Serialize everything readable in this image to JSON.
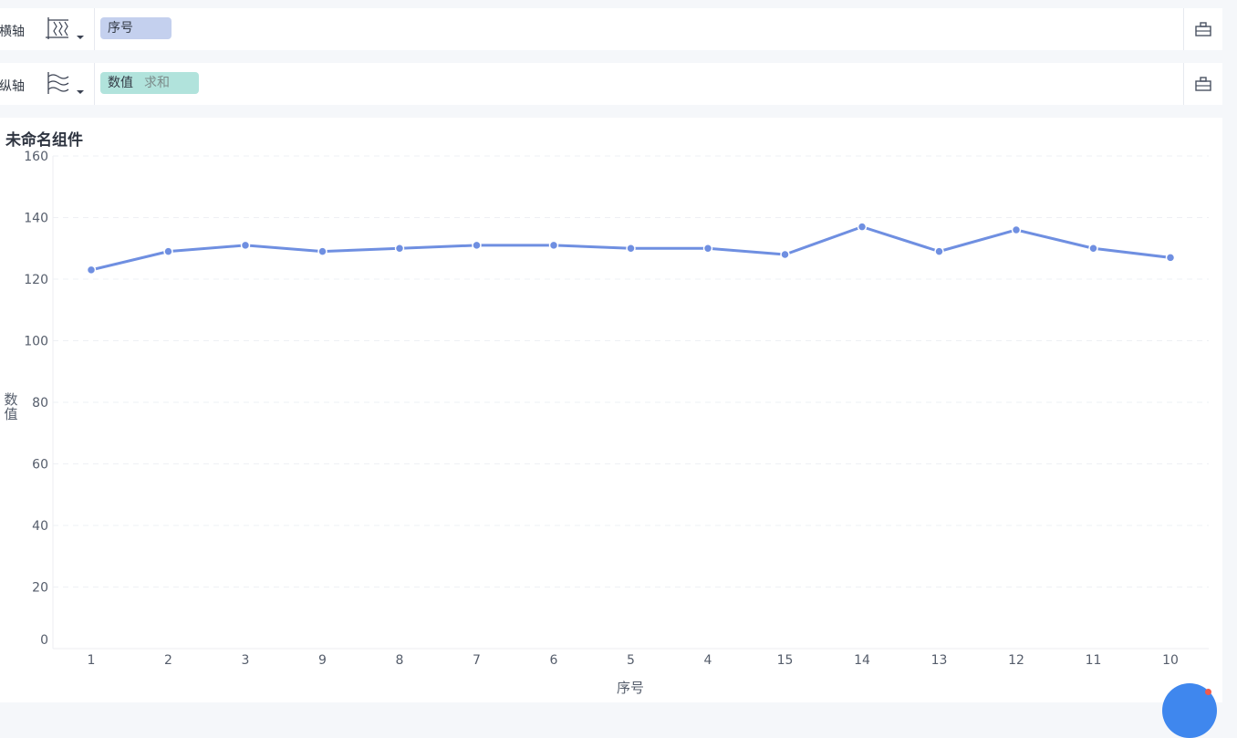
{
  "x_axis_bar": {
    "label": "横轴",
    "icon": "x-axis-type-icon",
    "field": "序号",
    "field_color": "#c4d0ee",
    "settings_icon": "settings-panel-icon"
  },
  "y_axis_bar": {
    "label": "纵轴",
    "icon": "y-axis-type-icon",
    "field": "数值",
    "aggregation": "求和",
    "field_color": "#b1e3dc",
    "settings_icon": "settings-panel-icon"
  },
  "chart_panel": {
    "title": "未命名组件"
  },
  "help_button": {
    "icon": "help-icon",
    "color": "#3f87ee",
    "notification_color": "#f25a4a"
  },
  "chart_data": {
    "type": "line",
    "categories": [
      "1",
      "2",
      "3",
      "9",
      "8",
      "7",
      "6",
      "5",
      "4",
      "15",
      "14",
      "13",
      "12",
      "11",
      "10"
    ],
    "series": [
      {
        "values": [
          123,
          129,
          131,
          129,
          130,
          131,
          131,
          130,
          130,
          128,
          137,
          129,
          136,
          130,
          127
        ],
        "color": "#6f8fe1"
      }
    ],
    "xlabel": "序号",
    "ylabel": "数值",
    "ylim": [
      0,
      160
    ],
    "yticks": [
      0,
      20,
      40,
      60,
      80,
      100,
      120,
      140,
      160
    ],
    "grid": true
  }
}
